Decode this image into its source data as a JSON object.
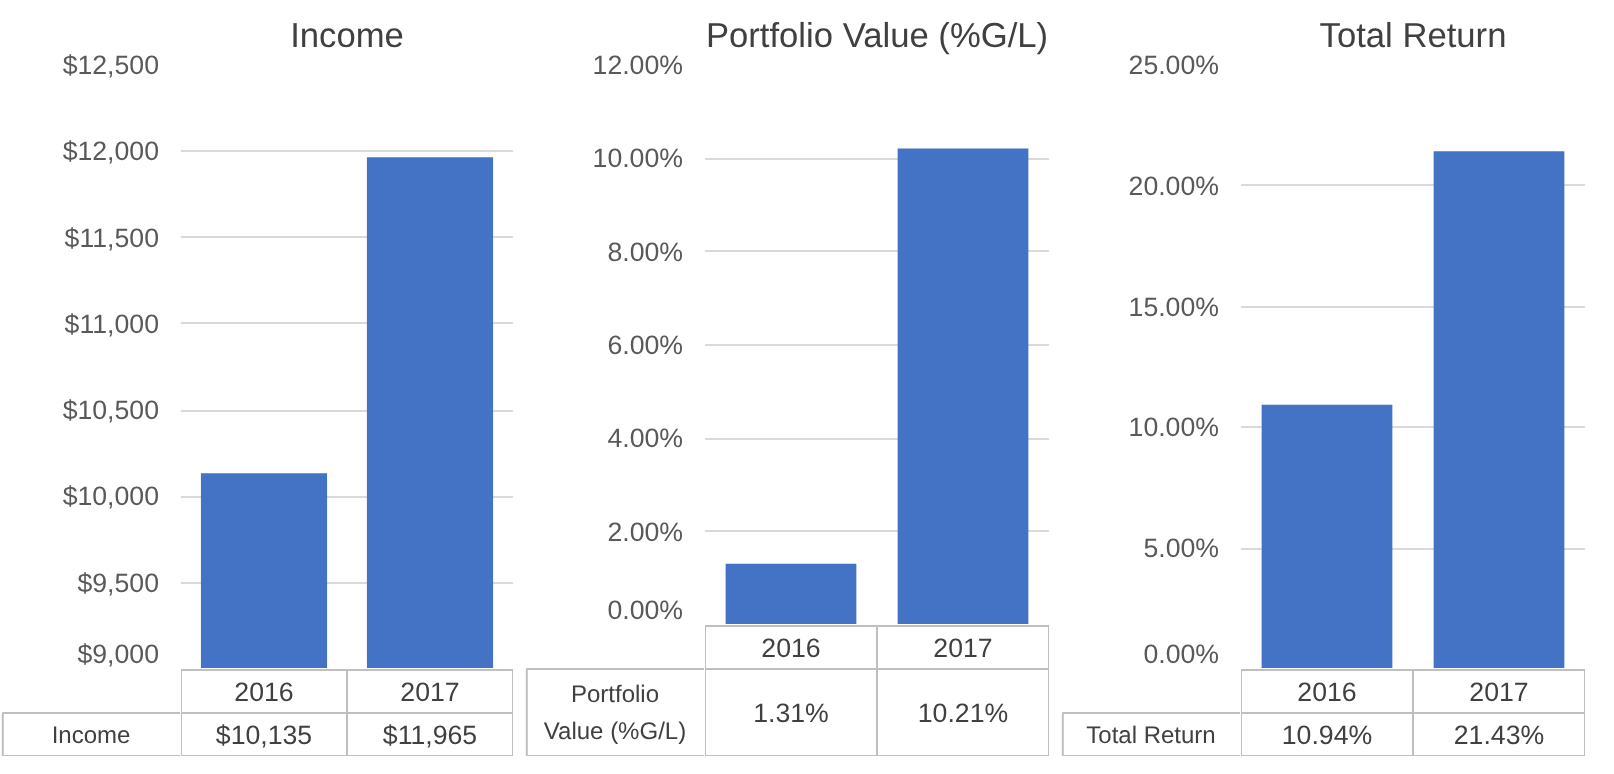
{
  "chart_data": [
    {
      "type": "bar",
      "title": "Income",
      "categories": [
        "2016",
        "2017"
      ],
      "series": [
        {
          "name": "Income",
          "color": "#4472c4",
          "values": [
            10135,
            11965
          ],
          "value_labels": [
            "$10,135",
            "$11,965"
          ]
        }
      ],
      "ylim": [
        9000,
        12500
      ],
      "yticks": [
        {
          "value": 9000,
          "label": "$9,000"
        },
        {
          "value": 9500,
          "label": "$9,500"
        },
        {
          "value": 10000,
          "label": "$10,000"
        },
        {
          "value": 10500,
          "label": "$10,500"
        },
        {
          "value": 11000,
          "label": "$11,000"
        },
        {
          "value": 11500,
          "label": "$11,500"
        },
        {
          "value": 12000,
          "label": "$12,000"
        },
        {
          "value": 12500,
          "label": "$12,500"
        }
      ],
      "grid": "y",
      "data_labels": true
    },
    {
      "type": "bar",
      "title": "Portfolio Value (%G/L)",
      "categories": [
        "2016",
        "2017"
      ],
      "series": [
        {
          "name": "Portfolio Value (%G/L)",
          "color": "#4472c4",
          "values": [
            1.31,
            10.21
          ],
          "value_labels": [
            "1.31%",
            "10.21%"
          ]
        }
      ],
      "ylim": [
        0,
        12
      ],
      "yticks": [
        {
          "value": 0,
          "label": "0.00%"
        },
        {
          "value": 2,
          "label": "2.00%"
        },
        {
          "value": 4,
          "label": "4.00%"
        },
        {
          "value": 6,
          "label": "6.00%"
        },
        {
          "value": 8,
          "label": "8.00%"
        },
        {
          "value": 10,
          "label": "10.00%"
        },
        {
          "value": 12,
          "label": "12.00%"
        }
      ],
      "grid": "y",
      "data_labels": true
    },
    {
      "type": "bar",
      "title": "Total Return",
      "categories": [
        "2016",
        "2017"
      ],
      "series": [
        {
          "name": "Total Return",
          "color": "#4472c4",
          "values": [
            10.94,
            21.43
          ],
          "value_labels": [
            "10.94%",
            "21.43%"
          ]
        }
      ],
      "ylim": [
        0,
        25
      ],
      "yticks": [
        {
          "value": 0,
          "label": "0.00%"
        },
        {
          "value": 5,
          "label": "5.00%"
        },
        {
          "value": 10,
          "label": "10.00%"
        },
        {
          "value": 15,
          "label": "15.00%"
        },
        {
          "value": 20,
          "label": "20.00%"
        },
        {
          "value": 25,
          "label": "25.00%"
        }
      ],
      "grid": "y",
      "data_labels": true
    }
  ]
}
